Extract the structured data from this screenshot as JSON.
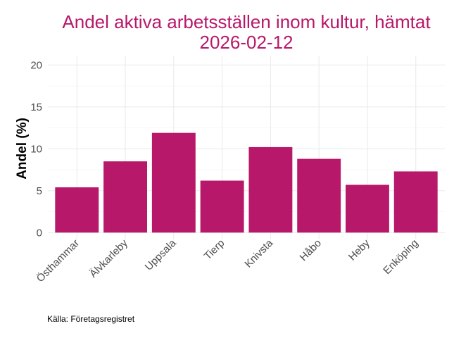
{
  "chart_data": {
    "type": "bar",
    "title_lines": [
      "Andel aktiva arbetsställen inom kultur, hämtat",
      "2026-02-12"
    ],
    "xlabel": "",
    "ylabel": "Andel (%)",
    "categories": [
      "Östhammar",
      "Älvkarleby",
      "Uppsala",
      "Tierp",
      "Knivsta",
      "Håbo",
      "Heby",
      "Enköping"
    ],
    "values": [
      5.4,
      8.5,
      11.9,
      6.2,
      10.2,
      8.8,
      5.7,
      7.3
    ],
    "ylim": [
      0,
      20
    ],
    "yticks": [
      "0",
      "5",
      "10",
      "15",
      "20"
    ],
    "grid": true,
    "bar_color": "#b8186a",
    "caption": "Källa: Företagsregistret"
  }
}
